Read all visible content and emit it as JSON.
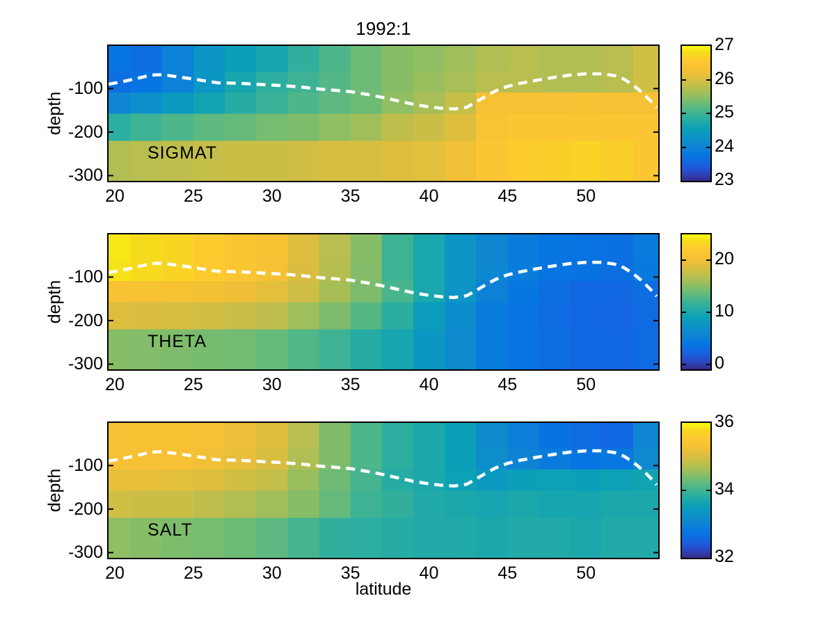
{
  "title": "1992:1",
  "xlabel": "latitude",
  "ylabel": "depth",
  "colors": {
    "background": "#ffffff",
    "axis": "#000000",
    "mld_line": "#ffffff"
  },
  "colormap": {
    "name": "parula",
    "stops": [
      [
        0,
        "#352a87"
      ],
      [
        0.063,
        "#2b4ac7"
      ],
      [
        0.127,
        "#1464e2"
      ],
      [
        0.19,
        "#0676e1"
      ],
      [
        0.254,
        "#0f84d3"
      ],
      [
        0.317,
        "#0c92c8"
      ],
      [
        0.381,
        "#0ba0b8"
      ],
      [
        0.444,
        "#23aba6"
      ],
      [
        0.508,
        "#42b491"
      ],
      [
        0.571,
        "#6abb77"
      ],
      [
        0.635,
        "#97be5e"
      ],
      [
        0.698,
        "#bebe4c"
      ],
      [
        0.762,
        "#ddbe3f"
      ],
      [
        0.825,
        "#f6c134"
      ],
      [
        0.889,
        "#fec832"
      ],
      [
        0.952,
        "#f6dc1c"
      ],
      [
        1,
        "#f9fb0e"
      ]
    ]
  },
  "mld_line": {
    "color": "#ffffff",
    "width": 4.5,
    "dash": [
      13,
      8.5
    ],
    "points": [
      [
        19.6,
        -90
      ],
      [
        20.5,
        -84
      ],
      [
        21.5,
        -76
      ],
      [
        22.3,
        -69
      ],
      [
        23,
        -68
      ],
      [
        23.8,
        -72
      ],
      [
        25,
        -78
      ],
      [
        26,
        -84
      ],
      [
        26.6,
        -87
      ],
      [
        28,
        -88
      ],
      [
        29,
        -90
      ],
      [
        30,
        -92
      ],
      [
        31,
        -94
      ],
      [
        32,
        -97
      ],
      [
        33,
        -101
      ],
      [
        34,
        -104
      ],
      [
        35,
        -107
      ],
      [
        36,
        -113
      ],
      [
        37,
        -120
      ],
      [
        38,
        -128
      ],
      [
        39,
        -136
      ],
      [
        40,
        -142
      ],
      [
        41,
        -146
      ],
      [
        41.6,
        -147
      ],
      [
        42.4,
        -143
      ],
      [
        43,
        -131
      ],
      [
        43.6,
        -118
      ],
      [
        44.2,
        -106
      ],
      [
        45,
        -95
      ],
      [
        45.8,
        -88
      ],
      [
        47,
        -80
      ],
      [
        48,
        -74
      ],
      [
        49,
        -69
      ],
      [
        50,
        -66
      ],
      [
        51,
        -66
      ],
      [
        51.8,
        -70
      ],
      [
        52.4,
        -78
      ],
      [
        53,
        -92
      ],
      [
        53.6,
        -110
      ],
      [
        54.1,
        -128
      ],
      [
        54.5,
        -144
      ]
    ]
  },
  "chart_data": [
    {
      "type": "heatmap",
      "label": "SIGMAT",
      "caxis": [
        23,
        27
      ],
      "colorbar_ticks": [
        23,
        24,
        25,
        26,
        27
      ],
      "x_ticks": [
        20,
        25,
        30,
        35,
        40,
        45,
        50
      ],
      "y_ticks": [
        -100,
        -200,
        -300
      ],
      "lat_edges": [
        19.6,
        21,
        23,
        25,
        27,
        29,
        31,
        33,
        35,
        37,
        39,
        41,
        43,
        45,
        47,
        49,
        51,
        53,
        54.6
      ],
      "depth_edges": [
        -2,
        -61,
        -109,
        -158,
        -220,
        -312
      ],
      "rows": [
        [
          23.75,
          23.65,
          23.95,
          24.3,
          24.5,
          24.65,
          24.9,
          25.1,
          25.3,
          25.45,
          25.5,
          25.6,
          25.7,
          25.75,
          25.7,
          25.7,
          25.75,
          25.95
        ],
        [
          23.65,
          23.75,
          23.95,
          24.35,
          24.65,
          24.85,
          25.0,
          25.15,
          25.3,
          25.45,
          25.55,
          25.65,
          25.75,
          25.75,
          25.7,
          25.7,
          25.75,
          25.95
        ],
        [
          24.05,
          24.2,
          24.4,
          24.6,
          24.8,
          24.95,
          25.1,
          25.2,
          25.3,
          25.5,
          25.65,
          25.85,
          26.3,
          26.3,
          26.3,
          26.35,
          26.3,
          26.3
        ],
        [
          24.85,
          25.0,
          25.1,
          25.2,
          25.25,
          25.35,
          25.4,
          25.5,
          25.6,
          25.8,
          25.9,
          26.05,
          26.4,
          26.5,
          26.5,
          26.5,
          26.5,
          26.45
        ],
        [
          25.7,
          25.75,
          25.8,
          25.85,
          25.9,
          25.9,
          25.95,
          26.0,
          26.0,
          26.05,
          26.1,
          26.25,
          26.45,
          26.6,
          26.65,
          26.7,
          26.65,
          26.5
        ]
      ]
    },
    {
      "type": "heatmap",
      "label": "THETA",
      "caxis": [
        -1,
        25
      ],
      "colorbar_ticks": [
        0,
        10,
        20
      ],
      "x_ticks": [
        20,
        25,
        30,
        35,
        40,
        45,
        50
      ],
      "y_ticks": [
        -100,
        -200,
        -300
      ],
      "lat_edges": [
        19.6,
        21,
        23,
        25,
        27,
        29,
        31,
        33,
        35,
        37,
        39,
        41,
        43,
        45,
        47,
        49,
        51,
        53,
        54.6
      ],
      "depth_edges": [
        -2,
        -61,
        -109,
        -158,
        -220,
        -312
      ],
      "rows": [
        [
          24.2,
          23.7,
          23.2,
          22.4,
          21.6,
          20.6,
          18.8,
          16.9,
          14.9,
          12.0,
          9.9,
          7.6,
          6.0,
          4.7,
          3.9,
          3.7,
          3.4,
          4.5
        ],
        [
          24.0,
          23.6,
          23.1,
          22.3,
          21.5,
          20.5,
          18.7,
          16.8,
          14.8,
          12.0,
          9.9,
          7.6,
          5.9,
          4.6,
          3.8,
          3.6,
          3.3,
          4.4
        ],
        [
          20.8,
          20.7,
          20.6,
          20.4,
          20.0,
          19.3,
          18.0,
          16.2,
          14.6,
          12.5,
          9.9,
          7.6,
          5.2,
          3.9,
          3.2,
          2.6,
          2.6,
          3.2
        ],
        [
          18.8,
          18.7,
          18.5,
          18.2,
          17.7,
          17.2,
          15.9,
          14.6,
          13.0,
          11.0,
          8.6,
          6.5,
          4.5,
          3.7,
          2.9,
          2.6,
          2.4,
          2.9
        ],
        [
          14.9,
          14.8,
          14.6,
          14.3,
          14.1,
          13.6,
          12.8,
          12.0,
          10.7,
          9.7,
          7.8,
          6.3,
          4.5,
          3.7,
          3.2,
          2.6,
          2.6,
          2.9
        ]
      ]
    },
    {
      "type": "heatmap",
      "label": "SALT",
      "caxis": [
        32,
        36
      ],
      "colorbar_ticks": [
        32,
        34,
        36
      ],
      "x_ticks": [
        20,
        25,
        30,
        35,
        40,
        45,
        50
      ],
      "y_ticks": [
        -100,
        -200,
        -300
      ],
      "lat_edges": [
        19.6,
        21,
        23,
        25,
        27,
        29,
        31,
        33,
        35,
        37,
        39,
        41,
        43,
        45,
        47,
        49,
        51,
        53,
        54.6
      ],
      "depth_edges": [
        -2,
        -61,
        -109,
        -158,
        -220,
        -312
      ],
      "rows": [
        [
          35.3,
          35.35,
          35.35,
          35.3,
          35.2,
          35.05,
          34.75,
          34.4,
          34.1,
          33.85,
          33.7,
          33.5,
          33.15,
          32.9,
          32.7,
          32.6,
          32.55,
          33.05
        ],
        [
          35.3,
          35.3,
          35.3,
          35.25,
          35.15,
          35.0,
          34.7,
          34.4,
          34.1,
          33.85,
          33.7,
          33.5,
          33.2,
          33.0,
          32.85,
          32.75,
          32.8,
          33.1
        ],
        [
          35.15,
          35.15,
          35.1,
          35.05,
          34.95,
          34.85,
          34.55,
          34.3,
          34.05,
          33.8,
          33.7,
          33.55,
          33.4,
          33.5,
          33.55,
          33.5,
          33.55,
          33.6
        ],
        [
          34.95,
          34.9,
          34.9,
          34.8,
          34.7,
          34.6,
          34.45,
          34.25,
          34.0,
          33.9,
          33.75,
          33.7,
          33.65,
          33.7,
          33.65,
          33.65,
          33.7,
          33.7
        ],
        [
          34.5,
          34.45,
          34.4,
          34.35,
          34.3,
          34.2,
          34.05,
          33.9,
          33.85,
          33.8,
          33.75,
          33.75,
          33.7,
          33.75,
          33.75,
          33.7,
          33.75,
          33.75
        ]
      ]
    }
  ]
}
